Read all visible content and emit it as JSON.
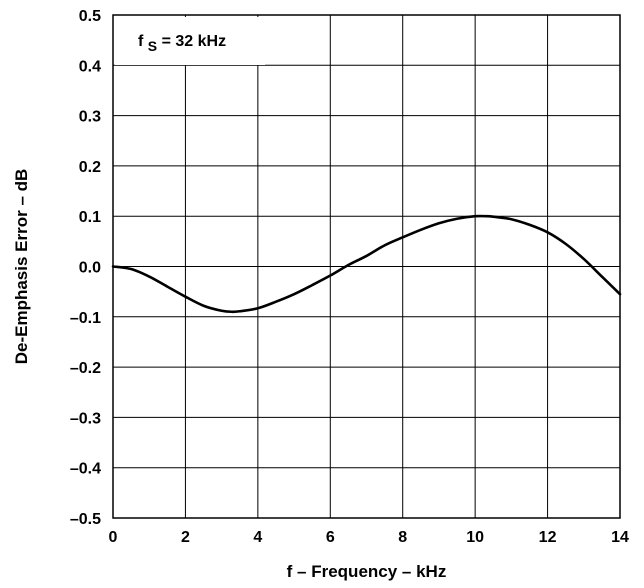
{
  "chart_data": {
    "type": "line",
    "title": "",
    "xlabel": "f – Frequency – kHz",
    "ylabel": "De-Emphasis Error – dB",
    "xlim": [
      0,
      14
    ],
    "ylim": [
      -0.5,
      0.5
    ],
    "grid": true,
    "x_ticks": [
      "0",
      "2",
      "4",
      "6",
      "8",
      "10",
      "12",
      "14"
    ],
    "y_ticks": [
      "0.5",
      "0.4",
      "0.3",
      "0.2",
      "0.1",
      "0.0",
      "–0.1",
      "–0.2",
      "–0.3",
      "–0.4",
      "–0.5"
    ],
    "annotation": {
      "main": "f",
      "subscript": "S",
      "rest": " = 32 kHz"
    },
    "series": [
      {
        "x": [
          0,
          0.5,
          1,
          1.5,
          2,
          2.5,
          3,
          3.3,
          3.5,
          4,
          4.5,
          5,
          5.5,
          6,
          6.5,
          7,
          7.5,
          8,
          8.5,
          9,
          9.5,
          10,
          10.3,
          10.5,
          11,
          11.5,
          12,
          12.5,
          13,
          13.5,
          14
        ],
        "y": [
          0.0,
          -0.005,
          -0.02,
          -0.04,
          -0.06,
          -0.078,
          -0.088,
          -0.09,
          -0.089,
          -0.083,
          -0.07,
          -0.055,
          -0.037,
          -0.018,
          0.003,
          0.021,
          0.042,
          0.058,
          0.073,
          0.086,
          0.095,
          0.1,
          0.1,
          0.099,
          0.094,
          0.083,
          0.068,
          0.045,
          0.015,
          -0.02,
          -0.055
        ]
      }
    ]
  }
}
